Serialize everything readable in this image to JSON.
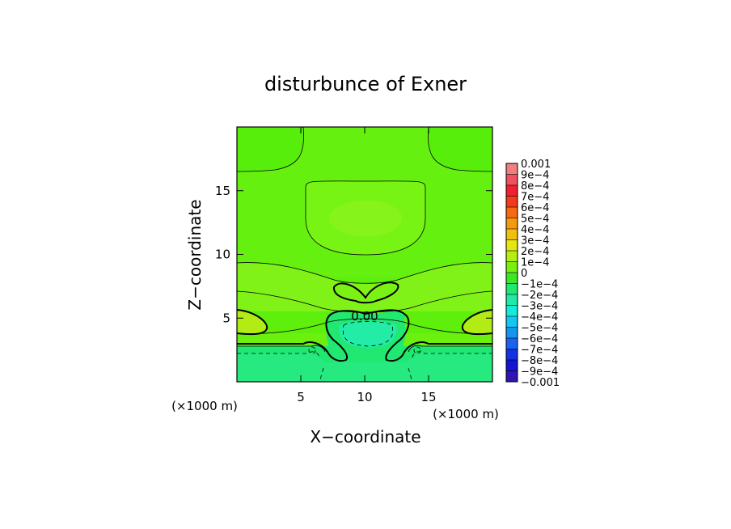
{
  "chart_data": {
    "type": "contour",
    "title": "disturbunce of Exner",
    "xlabel": "X−coordinate",
    "ylabel": "Z−coordinate",
    "x_unit_label": "(×1000 m)",
    "z_unit_label": "(×1000 m)",
    "xlim": [
      0,
      20
    ],
    "ylim": [
      0,
      20
    ],
    "x_ticks": [
      {
        "v": 5,
        "label": "5"
      },
      {
        "v": 10,
        "label": "10"
      },
      {
        "v": 15,
        "label": "15"
      }
    ],
    "y_ticks": [
      {
        "v": 5,
        "label": "5"
      },
      {
        "v": 10,
        "label": "10"
      },
      {
        "v": 15,
        "label": "15"
      }
    ],
    "contour_label": "0.00",
    "colorbar": {
      "levels": [
        {
          "label": "0.001",
          "color": "#f08080"
        },
        {
          "label": "9e−4",
          "color": "#f05060"
        },
        {
          "label": "8e−4",
          "color": "#f02030"
        },
        {
          "label": "7e−4",
          "color": "#f53a1a"
        },
        {
          "label": "6e−4",
          "color": "#f56a10"
        },
        {
          "label": "5e−4",
          "color": "#f59a10"
        },
        {
          "label": "4e−4",
          "color": "#f0c010"
        },
        {
          "label": "3e−4",
          "color": "#e6e610"
        },
        {
          "label": "2e−4",
          "color": "#b4ee14"
        },
        {
          "label": "1e−4",
          "color": "#78f010"
        },
        {
          "label": "0",
          "color": "#3ce628"
        },
        {
          "label": "−1e−4",
          "color": "#20e870"
        },
        {
          "label": "−2e−4",
          "color": "#20eaa8"
        },
        {
          "label": "−3e−4",
          "color": "#14ecd8"
        },
        {
          "label": "−4e−4",
          "color": "#10c8f0"
        },
        {
          "label": "−5e−4",
          "color": "#1496f0"
        },
        {
          "label": "−6e−4",
          "color": "#1864f0"
        },
        {
          "label": "−7e−4",
          "color": "#1432e6"
        },
        {
          "label": "−8e−4",
          "color": "#1414d2"
        },
        {
          "label": "−9e−4",
          "color": "#3214b4"
        },
        {
          "label": "−0.001",
          "color": "#5a1496"
        }
      ]
    }
  }
}
